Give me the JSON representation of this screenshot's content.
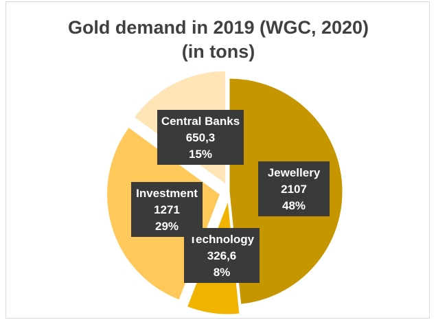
{
  "chart_data": {
    "type": "pie",
    "title_lines": [
      "Gold demand in 2019 (WGC, 2020)",
      "(in tons)"
    ],
    "slices": [
      {
        "name": "Jewellery",
        "value_label": "2107",
        "percent_label": "48%",
        "value": 2107,
        "percent": 48,
        "color": "#c59600"
      },
      {
        "name": "Technology",
        "value_label": "326,6",
        "percent_label": "8%",
        "value": 326.6,
        "percent": 8,
        "color": "#f0b400"
      },
      {
        "name": "Investment",
        "value_label": "1271",
        "percent_label": "29%",
        "value": 1271,
        "percent": 29,
        "color": "#ffc85a"
      },
      {
        "name": "Central Banks",
        "value_label": "650,3",
        "percent_label": "15%",
        "value": 650.3,
        "percent": 15,
        "color": "#ffe4b5"
      }
    ],
    "exploded": true,
    "legend": "none",
    "label_style": "dark-box"
  }
}
